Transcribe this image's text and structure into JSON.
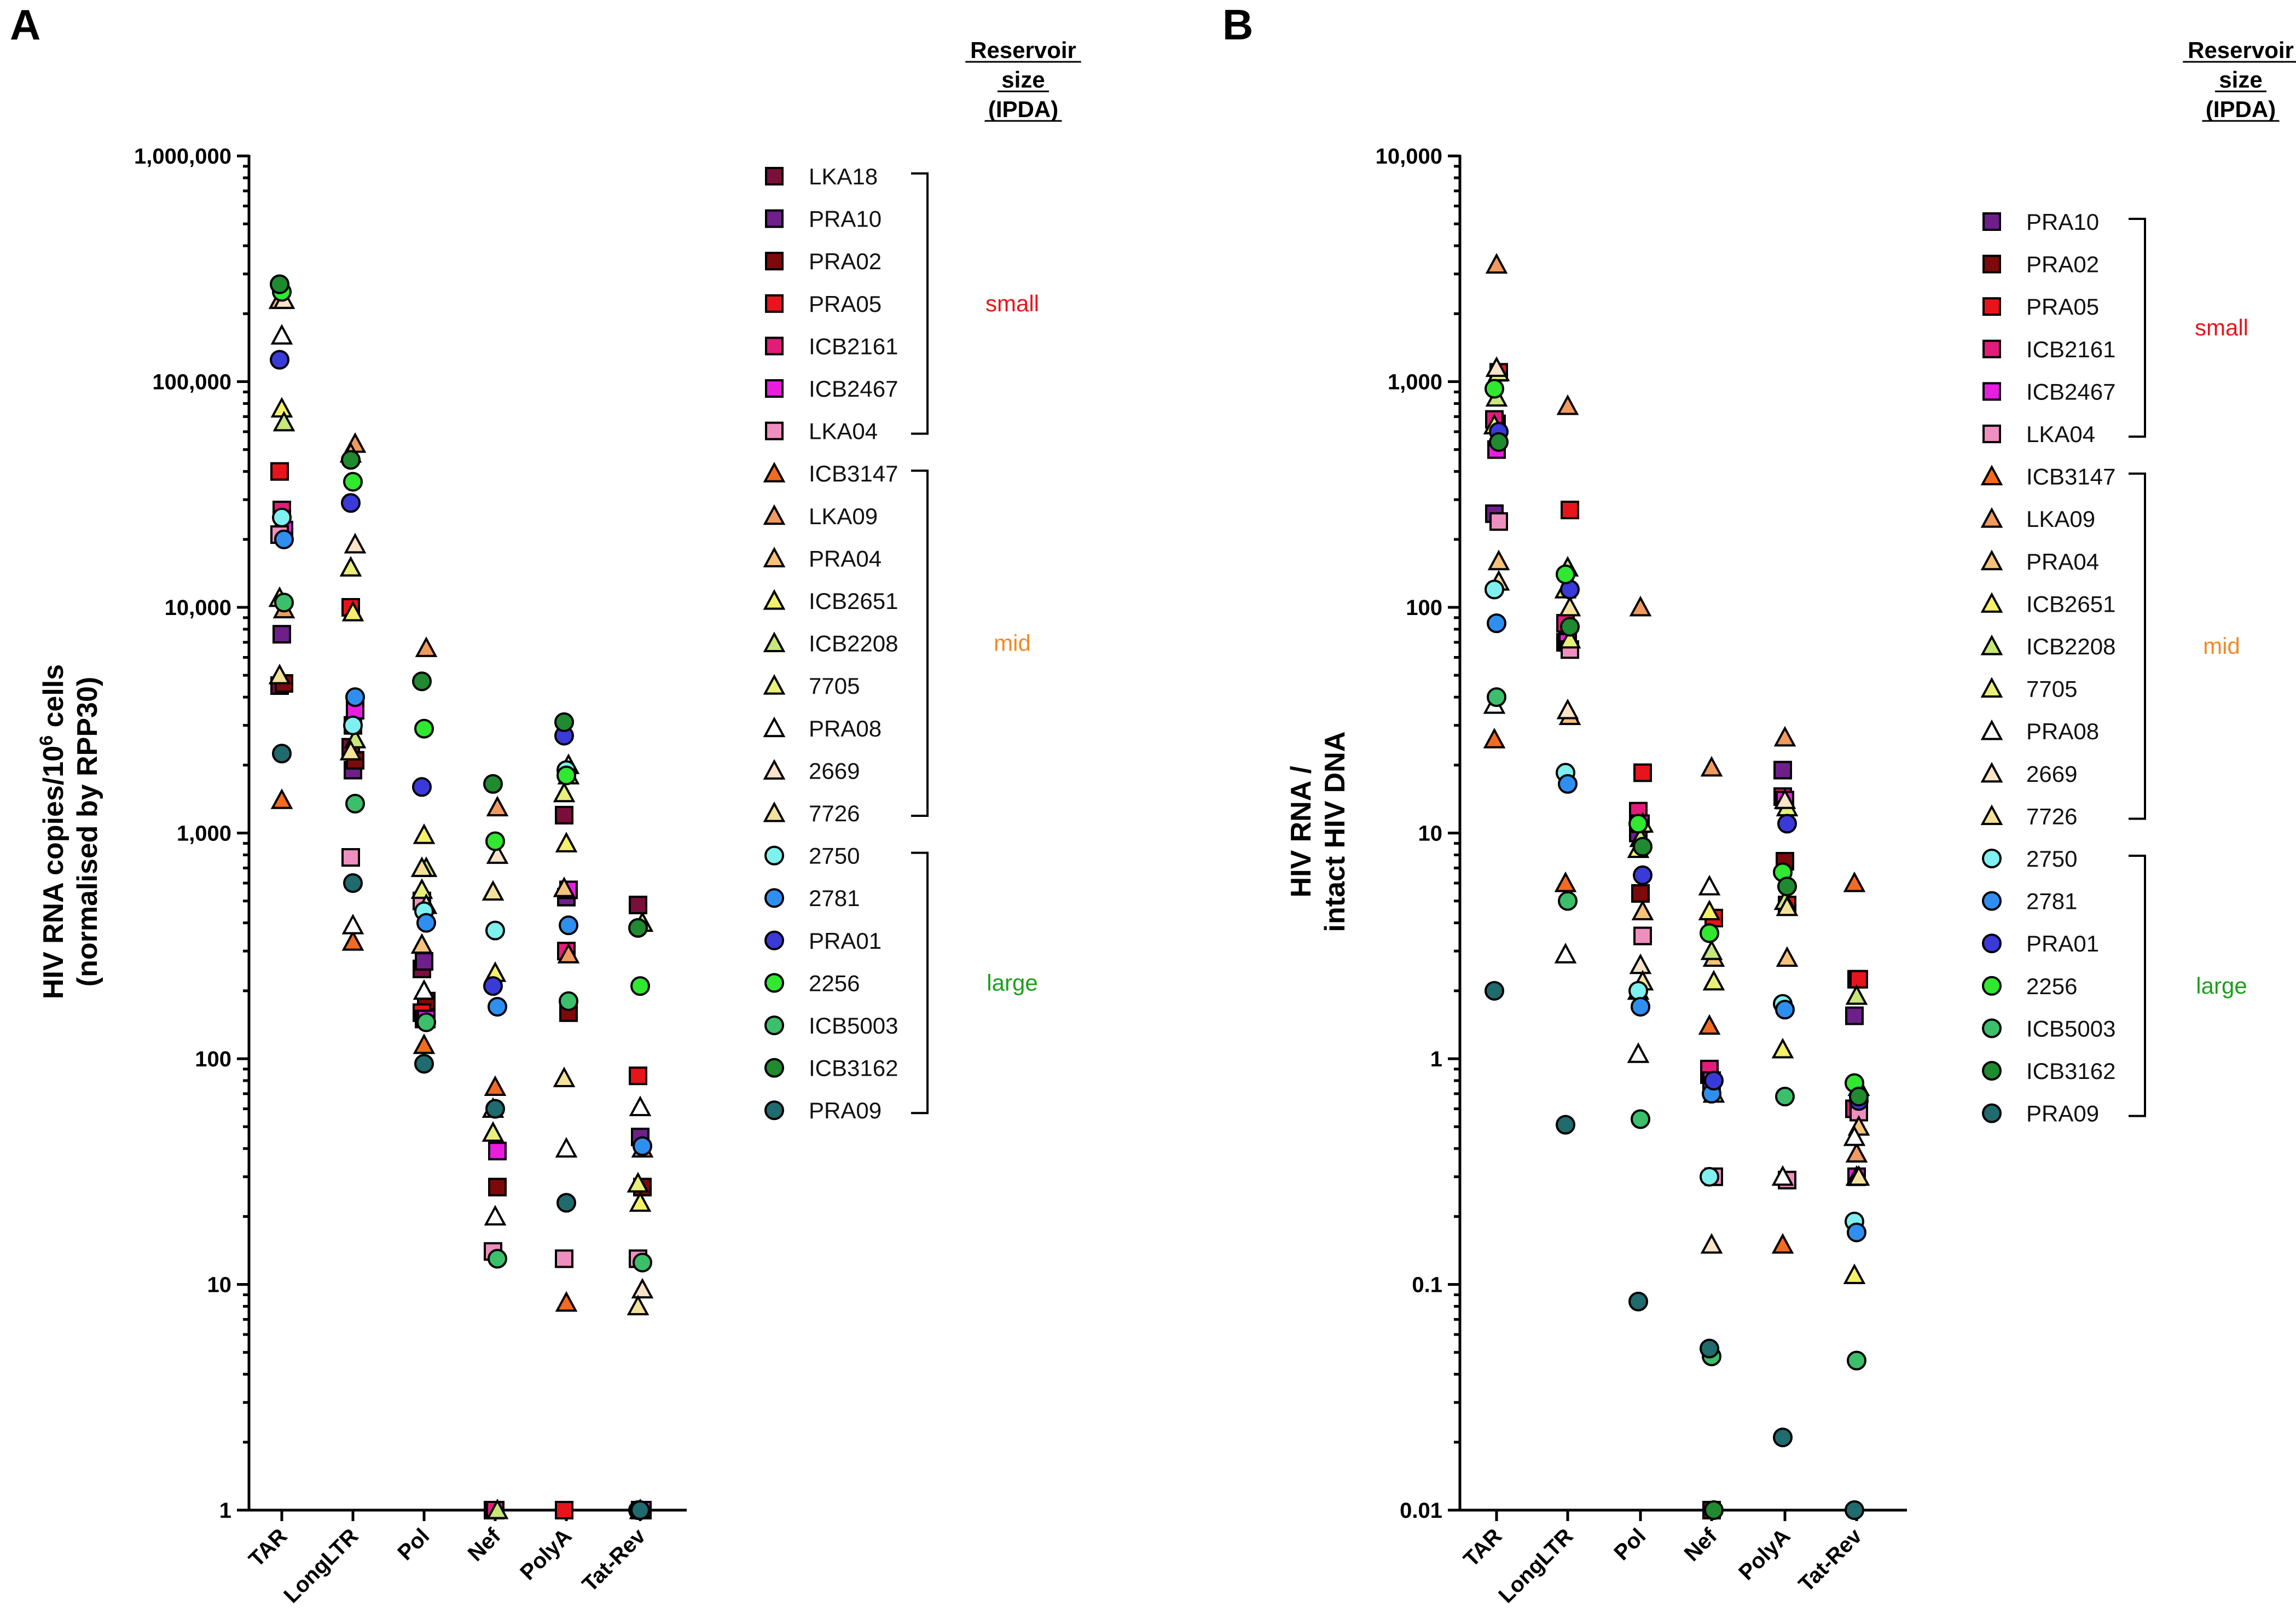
{
  "colors": {
    "LKA18": "#7a0f3c",
    "PRA10": "#6e1f8a",
    "PRA02": "#7d0a0a",
    "PRA05": "#e8141b",
    "ICB2161": "#e31c79",
    "ICB2467": "#e81de0",
    "LKA04": "#ef8fbf",
    "ICB3147": "#f26b21",
    "LKA09": "#f09a60",
    "PRA04": "#f6c27a",
    "ICB2651": "#f4f06a",
    "ICB2208": "#c8e67a",
    "7705": "#e8f07a",
    "PRA08": "#ffffff",
    "2669": "#fbe3c8",
    "7726": "#f5e29a",
    "2750": "#7ff0f0",
    "2781": "#2f8ff0",
    "PRA01": "#3a3ad8",
    "2256": "#2fe82f",
    "ICB5003": "#3cbf6a",
    "ICB3162": "#1f8a2f",
    "PRA09": "#1f6b6e",
    "small": "#e8141b",
    "mid": "#f08a24",
    "large": "#1e9e1e"
  },
  "chart_data": [
    {
      "type": "scatter",
      "panel": "A",
      "ylabel_line1": "HIV RNA copies/10",
      "ylabel_sup": "6",
      "ylabel_line1_end": " cells",
      "ylabel_line2": "(normalised by RPP30)",
      "yscale": "log",
      "ylim": [
        1,
        1000000
      ],
      "yticks": [
        1,
        10,
        100,
        1000,
        10000,
        100000,
        1000000
      ],
      "ytick_labels": [
        "1",
        "10",
        "100",
        "1,000",
        "10,000",
        "100,000",
        "1,000,000"
      ],
      "categories": [
        "TAR",
        "LongLTR",
        "Pol",
        "Nef",
        "PolyA",
        "Tat-Rev"
      ],
      "legend_title": [
        "Reservoir",
        "size",
        "(IPDA)"
      ],
      "legend": [
        {
          "name": "LKA18",
          "shape": "square",
          "group": "small"
        },
        {
          "name": "PRA10",
          "shape": "square",
          "group": "small"
        },
        {
          "name": "PRA02",
          "shape": "square",
          "group": "small"
        },
        {
          "name": "PRA05",
          "shape": "square",
          "group": "small"
        },
        {
          "name": "ICB2161",
          "shape": "square",
          "group": "small"
        },
        {
          "name": "ICB2467",
          "shape": "square",
          "group": "small"
        },
        {
          "name": "LKA04",
          "shape": "square",
          "group": "small"
        },
        {
          "name": "ICB3147",
          "shape": "triangle",
          "group": "mid"
        },
        {
          "name": "LKA09",
          "shape": "triangle",
          "group": "mid"
        },
        {
          "name": "PRA04",
          "shape": "triangle",
          "group": "mid"
        },
        {
          "name": "ICB2651",
          "shape": "triangle",
          "group": "mid"
        },
        {
          "name": "ICB2208",
          "shape": "triangle",
          "group": "mid"
        },
        {
          "name": "7705",
          "shape": "triangle",
          "group": "mid"
        },
        {
          "name": "PRA08",
          "shape": "triangle",
          "group": "mid"
        },
        {
          "name": "2669",
          "shape": "triangle",
          "group": "mid"
        },
        {
          "name": "7726",
          "shape": "triangle",
          "group": "mid"
        },
        {
          "name": "2750",
          "shape": "circle",
          "group": "large"
        },
        {
          "name": "2781",
          "shape": "circle",
          "group": "large"
        },
        {
          "name": "PRA01",
          "shape": "circle",
          "group": "large"
        },
        {
          "name": "2256",
          "shape": "circle",
          "group": "large"
        },
        {
          "name": "ICB5003",
          "shape": "circle",
          "group": "large"
        },
        {
          "name": "ICB3162",
          "shape": "circle",
          "group": "large"
        },
        {
          "name": "PRA09",
          "shape": "circle",
          "group": "large"
        }
      ],
      "groups": [
        {
          "label": "small",
          "first": 0,
          "last": 6
        },
        {
          "label": "mid",
          "first": 7,
          "last": 15
        },
        {
          "label": "large",
          "first": 16,
          "last": 22
        }
      ],
      "series": [
        {
          "name": "LKA18",
          "values": [
            4500,
            2400,
            250,
            1,
            1200,
            480
          ]
        },
        {
          "name": "PRA10",
          "values": [
            7600,
            1900,
            270,
            1,
            520,
            45
          ]
        },
        {
          "name": "PRA02",
          "values": [
            4600,
            2100,
            180,
            27,
            160,
            27
          ]
        },
        {
          "name": "PRA05",
          "values": [
            40000,
            10000,
            160,
            1,
            1,
            84
          ]
        },
        {
          "name": "ICB2161",
          "values": [
            27000,
            3000,
            150,
            1,
            300,
            1
          ]
        },
        {
          "name": "ICB2467",
          "values": [
            22000,
            3500,
            150,
            39,
            560,
            1
          ]
        },
        {
          "name": "LKA04",
          "values": [
            21000,
            780,
            500,
            14,
            13,
            13
          ]
        },
        {
          "name": "ICB3147",
          "values": [
            1400,
            330,
            115,
            75,
            8.3,
            1
          ]
        },
        {
          "name": "LKA09",
          "values": [
            9800,
            53000,
            6600,
            1300,
            290,
            40
          ]
        },
        {
          "name": "PRA04",
          "values": [
            230000,
            48000,
            320,
            60,
            570,
            28
          ]
        },
        {
          "name": "ICB2651",
          "values": [
            76000,
            9500,
            980,
            240,
            900,
            23
          ]
        },
        {
          "name": "ICB2208",
          "values": [
            66000,
            2600,
            700,
            1,
            1800,
            400
          ]
        },
        {
          "name": "7705",
          "values": [
            11000,
            15000,
            560,
            47,
            1500,
            28
          ]
        },
        {
          "name": "PRA08",
          "values": [
            160000,
            390,
            200,
            20,
            40,
            61
          ]
        },
        {
          "name": "2669",
          "values": [
            230000,
            19000,
            480,
            800,
            2000,
            9.5
          ]
        },
        {
          "name": "7726",
          "values": [
            5000,
            2300,
            700,
            550,
            82,
            8
          ]
        },
        {
          "name": "2750",
          "values": [
            25000,
            3000,
            450,
            370,
            1900,
            1
          ]
        },
        {
          "name": "2781",
          "values": [
            20000,
            4000,
            400,
            170,
            390,
            41
          ]
        },
        {
          "name": "PRA01",
          "values": [
            125000,
            29000,
            1600,
            210,
            2700,
            1
          ]
        },
        {
          "name": "2256",
          "values": [
            250000,
            36000,
            2900,
            920,
            1800,
            210
          ]
        },
        {
          "name": "ICB5003",
          "values": [
            10500,
            1350,
            145,
            13,
            180,
            12.5
          ]
        },
        {
          "name": "ICB3162",
          "values": [
            270000,
            45000,
            4700,
            1650,
            3100,
            380
          ]
        },
        {
          "name": "PRA09",
          "values": [
            2250,
            600,
            95,
            60,
            23,
            1
          ]
        }
      ]
    },
    {
      "type": "scatter",
      "panel": "B",
      "ylabel_line1": "HIV RNA /",
      "ylabel_line2": "intact HIV DNA",
      "yscale": "log",
      "ylim": [
        0.01,
        10000
      ],
      "yticks": [
        0.01,
        0.1,
        1,
        10,
        100,
        1000,
        10000
      ],
      "ytick_labels": [
        "0.01",
        "0.1",
        "1",
        "10",
        "100",
        "1,000",
        "10,000"
      ],
      "categories": [
        "TAR",
        "LongLTR",
        "Pol",
        "Nef",
        "PolyA",
        "Tat-Rev"
      ],
      "legend_title": [
        "Reservoir",
        "size",
        "(IPDA)"
      ],
      "legend": [
        {
          "name": "PRA10",
          "shape": "square",
          "group": "small"
        },
        {
          "name": "PRA02",
          "shape": "square",
          "group": "small"
        },
        {
          "name": "PRA05",
          "shape": "square",
          "group": "small"
        },
        {
          "name": "ICB2161",
          "shape": "square",
          "group": "small"
        },
        {
          "name": "ICB2467",
          "shape": "square",
          "group": "small"
        },
        {
          "name": "LKA04",
          "shape": "square",
          "group": "small"
        },
        {
          "name": "ICB3147",
          "shape": "triangle",
          "group": "mid"
        },
        {
          "name": "LKA09",
          "shape": "triangle",
          "group": "mid"
        },
        {
          "name": "PRA04",
          "shape": "triangle",
          "group": "mid"
        },
        {
          "name": "ICB2651",
          "shape": "triangle",
          "group": "mid"
        },
        {
          "name": "ICB2208",
          "shape": "triangle",
          "group": "mid"
        },
        {
          "name": "7705",
          "shape": "triangle",
          "group": "mid"
        },
        {
          "name": "PRA08",
          "shape": "triangle",
          "group": "mid"
        },
        {
          "name": "2669",
          "shape": "triangle",
          "group": "mid"
        },
        {
          "name": "7726",
          "shape": "triangle",
          "group": "mid"
        },
        {
          "name": "2750",
          "shape": "circle",
          "group": "large"
        },
        {
          "name": "2781",
          "shape": "circle",
          "group": "large"
        },
        {
          "name": "PRA01",
          "shape": "circle",
          "group": "large"
        },
        {
          "name": "2256",
          "shape": "circle",
          "group": "large"
        },
        {
          "name": "ICB5003",
          "shape": "circle",
          "group": "large"
        },
        {
          "name": "ICB3162",
          "shape": "circle",
          "group": "large"
        },
        {
          "name": "PRA09",
          "shape": "circle",
          "group": "large"
        }
      ],
      "groups": [
        {
          "label": "small",
          "first": 0,
          "last": 5
        },
        {
          "label": "mid",
          "first": 6,
          "last": 14
        },
        {
          "label": "large",
          "first": 15,
          "last": 21
        }
      ],
      "series": [
        {
          "name": "PRA10",
          "values": [
            260,
            70,
            10,
            0.85,
            19,
            1.55
          ]
        },
        {
          "name": "PRA02",
          "values": [
            650,
            80,
            5.4,
            0.01,
            7.5,
            2.25
          ]
        },
        {
          "name": "PRA05",
          "values": [
            1100,
            270,
            18.5,
            4.2,
            4.8,
            2.25
          ]
        },
        {
          "name": "ICB2161",
          "values": [
            680,
            85,
            12.5,
            0.9,
            14.5,
            0.6
          ]
        },
        {
          "name": "ICB2467",
          "values": [
            500,
            70,
            11,
            0.8,
            14,
            0.3
          ]
        },
        {
          "name": "LKA04",
          "values": [
            240,
            65,
            3.5,
            0.3,
            0.29,
            0.58
          ]
        },
        {
          "name": "ICB3147",
          "values": [
            26,
            6,
            2,
            1.4,
            0.15,
            6
          ]
        },
        {
          "name": "LKA09",
          "values": [
            3300,
            780,
            100,
            19.5,
            26.5,
            0.38
          ]
        },
        {
          "name": "PRA04",
          "values": [
            160,
            33,
            4.5,
            2.8,
            2.8,
            0.5
          ]
        },
        {
          "name": "ICB2651",
          "values": [
            640,
            120,
            8.5,
            4.5,
            1.1,
            0.11
          ]
        },
        {
          "name": "ICB2208",
          "values": [
            850,
            150,
            9.5,
            3,
            5,
            1.9
          ]
        },
        {
          "name": "7705",
          "values": [
            1100,
            72,
            11,
            2.2,
            13,
            0.75
          ]
        },
        {
          "name": "PRA08",
          "values": [
            37,
            2.9,
            1.05,
            5.8,
            0.3,
            0.45
          ]
        },
        {
          "name": "2669",
          "values": [
            1150,
            35,
            2.6,
            0.15,
            14,
            0.3
          ]
        },
        {
          "name": "7726",
          "values": [
            130,
            100,
            2.2,
            0.7,
            4.7,
            0.3
          ]
        },
        {
          "name": "2750",
          "values": [
            120,
            18.5,
            2,
            0.3,
            1.75,
            0.19
          ]
        },
        {
          "name": "2781",
          "values": [
            85,
            16.5,
            1.7,
            0.7,
            1.65,
            0.17
          ]
        },
        {
          "name": "PRA01",
          "values": [
            600,
            120,
            6.5,
            0.8,
            11,
            0.65
          ]
        },
        {
          "name": "2256",
          "values": [
            930,
            140,
            11,
            3.6,
            6.7,
            0.78
          ]
        },
        {
          "name": "ICB5003",
          "values": [
            40,
            5,
            0.54,
            0.048,
            0.68,
            0.046
          ]
        },
        {
          "name": "ICB3162",
          "values": [
            540,
            82,
            8.7,
            0.01,
            5.8,
            0.68
          ]
        },
        {
          "name": "PRA09",
          "values": [
            2,
            0.51,
            0.084,
            0.052,
            0.021,
            0.01
          ]
        }
      ]
    }
  ]
}
